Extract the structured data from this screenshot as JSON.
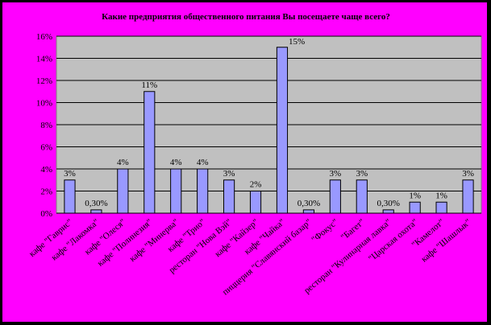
{
  "chart_data": {
    "type": "bar",
    "title": "Какие предприятия общественного питания Вы посещаете чаще всего?",
    "categories": [
      "кафе \"Гаврис\"",
      "кафе \"Лакомка\"",
      "кафе \"Олеся\"",
      "кафе \"Полинезия\"",
      "кафе \"Минерва\"",
      "кафе \"Трио\"",
      "ресторан \"Нова Вэй\"",
      "кафе \"Кайзер\"",
      "кафе \"Чайка\"",
      "пиццерия \"Славянский базар\"",
      "\"Фокус\"",
      "\"Багет\"",
      "ресторан \"Кулинарная лавка\"",
      "\"Царская охота\"",
      "\"Камелот\"",
      "кафе \"Шашлык\""
    ],
    "values": [
      3,
      0.3,
      4,
      11,
      4,
      4,
      3,
      2,
      15,
      0.3,
      3,
      3,
      0.3,
      1,
      1,
      3
    ],
    "value_labels": [
      "3%",
      "0,30%",
      "4%",
      "11%",
      "4%",
      "4%",
      "3%",
      "2%",
      "15%",
      "0,30%",
      "3%",
      "3%",
      "0,30%",
      "1%",
      "1%",
      "3%"
    ],
    "color": "#9999ff",
    "ylim": [
      0,
      16
    ],
    "yticks": [
      {
        "value": 0,
        "label": "0%"
      },
      {
        "value": 2,
        "label": "2%"
      },
      {
        "value": 4,
        "label": "4%"
      },
      {
        "value": 6,
        "label": "6%"
      },
      {
        "value": 8,
        "label": "8%"
      },
      {
        "value": 10,
        "label": "10%"
      },
      {
        "value": 12,
        "label": "12%"
      },
      {
        "value": 14,
        "label": "14%"
      },
      {
        "value": 16,
        "label": "16%"
      }
    ],
    "grid": true
  }
}
